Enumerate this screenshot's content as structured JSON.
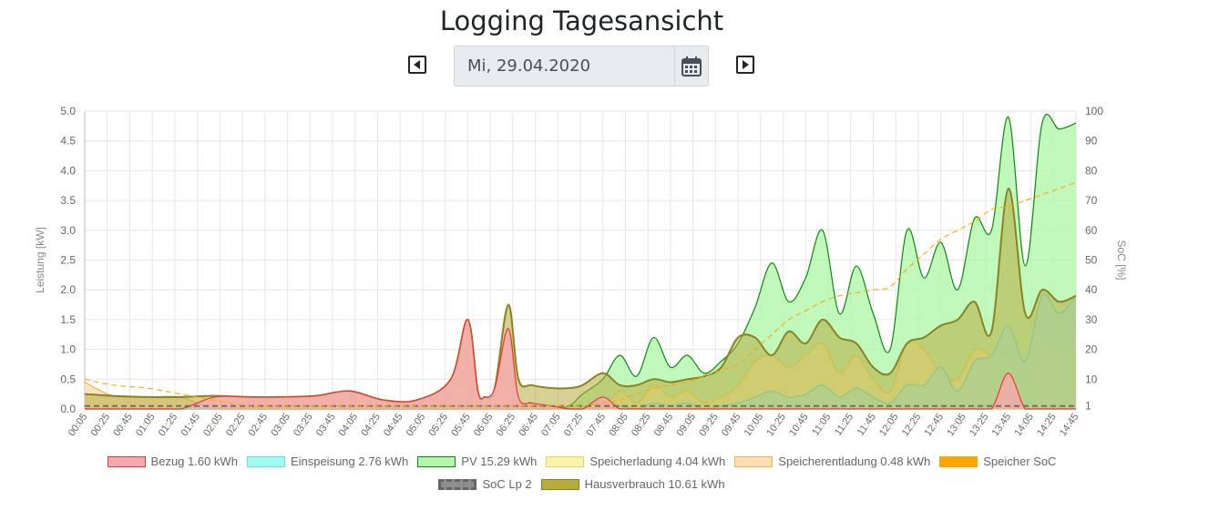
{
  "page": {
    "title": "Logging Tagesansicht"
  },
  "datepicker": {
    "value": "Mi, 29.04.2020"
  },
  "icons": {
    "prev": "caret-left-square-icon",
    "next": "caret-right-square-icon",
    "calendar": "calendar-icon"
  },
  "legend": [
    {
      "label": "Bezug 1.60 kWh",
      "fill": "#f7a8ad",
      "stroke": "#e53935",
      "style": "solid"
    },
    {
      "label": "Einspeisung 2.76 kWh",
      "fill": "#a2fbf3",
      "stroke": "#5be6d8",
      "style": "solid"
    },
    {
      "label": "PV 15.29 kWh",
      "fill": "#b2f7ac",
      "stroke": "#0a8a0a",
      "style": "solid"
    },
    {
      "label": "Speicherladung 4.04 kWh",
      "fill": "#fbf3ad",
      "stroke": "#e8d84a",
      "style": "solid"
    },
    {
      "label": "Speicherentladung 0.48 kWh",
      "fill": "#fddeb4",
      "stroke": "#f0b05a",
      "style": "solid"
    },
    {
      "label": "Speicher SoC",
      "fill": "#ffa500",
      "stroke": "#ffa500",
      "style": "dash"
    },
    {
      "label": "SoC Lp 2",
      "fill": "#8e8e8e",
      "stroke": "#666666",
      "style": "dash"
    },
    {
      "label": "Hausverbrauch 10.61 kWh",
      "fill": "#b6ac40",
      "stroke": "#8a8320",
      "style": "solid"
    }
  ],
  "chart_data": {
    "type": "area",
    "ylabel": "Leistung [kW]",
    "y2label": "SoC [%]",
    "ylim": [
      0,
      5
    ],
    "y2lim": [
      0,
      100
    ],
    "yticks": [
      "0.0",
      "0.5",
      "1.0",
      "1.5",
      "2.0",
      "2.5",
      "3.0",
      "3.5",
      "4.0",
      "4.5",
      "5.0"
    ],
    "y2ticks": [
      "1",
      "10",
      "20",
      "30",
      "40",
      "50",
      "60",
      "70",
      "80",
      "90",
      "100"
    ],
    "grid": true,
    "legend_position": "bottom",
    "xlabels": [
      "00:05",
      "00:25",
      "00:45",
      "01:05",
      "01:25",
      "01:45",
      "02:05",
      "02:25",
      "02:45",
      "03:05",
      "03:25",
      "03:45",
      "04:05",
      "04:25",
      "04:45",
      "05:05",
      "05:25",
      "05:45",
      "06:05",
      "06:25",
      "06:45",
      "07:05",
      "07:25",
      "07:45",
      "08:05",
      "08:25",
      "08:45",
      "09:05",
      "09:25",
      "09:45",
      "10:05",
      "10:25",
      "10:45",
      "11:05",
      "11:25",
      "11:45",
      "12:05",
      "12:25",
      "12:45",
      "13:05",
      "13:25",
      "13:45",
      "14:05",
      "14:25",
      "14:45"
    ],
    "x_hours": [
      0.083,
      0.5,
      1.0,
      1.5,
      2.0,
      2.5,
      3.0,
      3.5,
      4.0,
      4.5,
      5.0,
      5.5,
      5.75,
      5.9,
      6.0,
      6.15,
      6.35,
      6.5,
      6.7,
      7.0,
      7.25,
      7.45,
      7.75,
      8.0,
      8.25,
      8.5,
      8.75,
      9.0,
      9.25,
      9.5,
      9.75,
      10.0,
      10.25,
      10.5,
      10.75,
      11.0,
      11.25,
      11.5,
      11.75,
      12.0,
      12.25,
      12.5,
      12.75,
      13.0,
      13.25,
      13.5,
      13.75,
      14.0,
      14.25,
      14.5,
      14.75
    ],
    "series": [
      {
        "name": "PV 15.29 kWh",
        "values": [
          0,
          0,
          0,
          0,
          0,
          0,
          0,
          0,
          0,
          0,
          0,
          0,
          0,
          0,
          0,
          0,
          0,
          0,
          0,
          0,
          0.05,
          0.25,
          0.5,
          0.9,
          0.55,
          1.2,
          0.7,
          0.9,
          0.6,
          0.8,
          1.1,
          1.7,
          2.45,
          1.8,
          2.2,
          3.0,
          1.6,
          2.4,
          1.6,
          1.0,
          3.0,
          2.2,
          2.8,
          2.0,
          3.2,
          3.0,
          4.9,
          2.4,
          4.8,
          4.7,
          4.8
        ]
      },
      {
        "name": "Hausverbrauch 10.61 kWh",
        "values": [
          0.25,
          0.22,
          0.2,
          0.2,
          0.22,
          0.2,
          0.2,
          0.22,
          0.3,
          0.15,
          0.15,
          0.5,
          1.5,
          0.3,
          0.2,
          0.35,
          1.75,
          0.5,
          0.4,
          0.35,
          0.35,
          0.4,
          0.6,
          0.4,
          0.4,
          0.5,
          0.45,
          0.5,
          0.55,
          0.7,
          1.2,
          1.2,
          0.9,
          1.3,
          1.1,
          1.5,
          1.2,
          1.1,
          0.7,
          0.6,
          1.1,
          1.2,
          1.4,
          1.5,
          1.8,
          1.3,
          3.7,
          1.6,
          2.0,
          1.8,
          1.9
        ]
      },
      {
        "name": "Bezug 1.60 kWh",
        "values": [
          0,
          0,
          0,
          0,
          0.2,
          0.2,
          0.2,
          0.22,
          0.3,
          0.15,
          0.15,
          0.5,
          1.5,
          0.3,
          0.2,
          0.35,
          1.35,
          0.2,
          0.1,
          0.05,
          0,
          0,
          0.2,
          0,
          0,
          0,
          0,
          0,
          0,
          0,
          0,
          0,
          0,
          0,
          0,
          0,
          0,
          0,
          0,
          0,
          0,
          0,
          0,
          0,
          0,
          0,
          0.6,
          0,
          0,
          0,
          0
        ]
      },
      {
        "name": "Einspeisung 2.76 kWh",
        "values": [
          0,
          0,
          0,
          0,
          0,
          0,
          0,
          0,
          0,
          0,
          0,
          0,
          0,
          0,
          0,
          0,
          0,
          0,
          0,
          0,
          0,
          0,
          0,
          0.05,
          0,
          0.1,
          0.05,
          0.1,
          0,
          0.05,
          0.1,
          0.2,
          0.3,
          0.2,
          0.25,
          0.4,
          0.2,
          0.35,
          0.2,
          0.1,
          0.4,
          0.4,
          0.7,
          0.3,
          0.8,
          0.9,
          1.4,
          0.8,
          1.9,
          1.6,
          1.9
        ]
      },
      {
        "name": "Speicherladung 4.04 kWh",
        "values": [
          0,
          0,
          0,
          0,
          0,
          0,
          0,
          0,
          0,
          0,
          0,
          0,
          0,
          0,
          0,
          0,
          0,
          0,
          0,
          0,
          0,
          0,
          0,
          0.3,
          0.1,
          0.4,
          0.2,
          0.3,
          0.1,
          0.2,
          0.4,
          0.8,
          0.9,
          0.7,
          0.9,
          1.1,
          0.6,
          0.9,
          0.5,
          0.3,
          1.1,
          1.0,
          0.6,
          0.5,
          1.0,
          0.9,
          0.9,
          0.4,
          1.1,
          1.0,
          1.0
        ]
      },
      {
        "name": "Speicherentladung 0.48 kWh",
        "values": [
          0.45,
          0.22,
          0.2,
          0.2,
          0,
          0,
          0,
          0,
          0,
          0,
          0,
          0,
          0,
          0,
          0,
          0,
          0,
          0,
          0,
          0,
          0,
          0,
          0,
          0,
          0,
          0,
          0,
          0,
          0,
          0,
          0,
          0,
          0,
          0,
          0,
          0,
          0,
          0,
          0,
          0,
          0,
          0,
          0,
          0,
          0,
          0,
          0,
          0,
          0,
          0,
          0
        ]
      },
      {
        "name": "Speicher SoC",
        "axis": "right",
        "values": [
          10,
          8,
          7,
          5,
          3,
          1,
          1,
          1,
          1,
          1,
          1,
          1,
          1,
          1,
          1,
          1,
          1,
          1,
          1,
          1,
          1,
          1,
          2,
          3,
          5,
          7,
          8,
          9,
          11,
          13,
          15,
          20,
          25,
          30,
          33,
          36,
          38,
          39,
          40,
          41,
          47,
          52,
          57,
          60,
          63,
          67,
          68,
          70,
          72,
          74,
          76
        ]
      },
      {
        "name": "SoC Lp 2",
        "axis": "right",
        "values": [
          1,
          1,
          1,
          1,
          1,
          1,
          1,
          1,
          1,
          1,
          1,
          1,
          1,
          1,
          1,
          1,
          1,
          1,
          1,
          1,
          1,
          1,
          1,
          1,
          1,
          1,
          1,
          1,
          1,
          1,
          1,
          1,
          1,
          1,
          1,
          1,
          1,
          1,
          1,
          1,
          1,
          1,
          1,
          1,
          1,
          1,
          1,
          1,
          1,
          1,
          1
        ]
      }
    ]
  }
}
